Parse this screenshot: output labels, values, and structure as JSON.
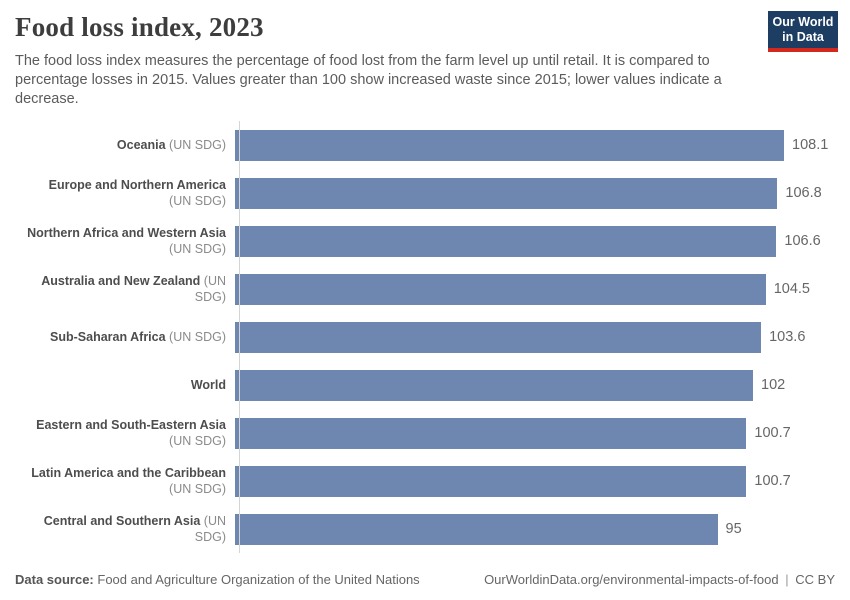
{
  "header": {
    "title": "Food loss index, 2023",
    "subtitle": "The food loss index measures the percentage of food lost from the farm level up until retail. It is compared to percentage losses in 2015. Values greater than 100 show increased waste since 2015; lower values indicate a decrease.",
    "logo": {
      "line1": "Our World",
      "line2": "in Data",
      "bg_color": "#1d3d63",
      "accent_color": "#d2281e"
    }
  },
  "chart_data": {
    "type": "bar",
    "orientation": "horizontal",
    "title": "Food loss index, 2023",
    "xlabel": "",
    "ylabel": "",
    "xlim": [
      0,
      108.1
    ],
    "grid": false,
    "legend": false,
    "bar_color": "#6d87b0",
    "axis_color": "#d5d5d5",
    "categories": [
      "Oceania (UN SDG)",
      "Europe and Northern America (UN SDG)",
      "Northern Africa and Western Asia (UN SDG)",
      "Australia and New Zealand (UN SDG)",
      "Sub-Saharan Africa (UN SDG)",
      "World",
      "Eastern and South-Eastern Asia (UN SDG)",
      "Latin America and the Caribbean (UN SDG)",
      "Central and Southern Asia (UN SDG)"
    ],
    "values": [
      108.1,
      106.8,
      106.6,
      104.5,
      103.6,
      102,
      100.7,
      100.7,
      95
    ],
    "rows": [
      {
        "name": "Oceania",
        "suffix": "(UN SDG)",
        "value": 108.1,
        "value_label": "108.1",
        "two_line": false
      },
      {
        "name": "Europe and Northern America",
        "suffix": "(UN SDG)",
        "value": 106.8,
        "value_label": "106.8",
        "two_line": true
      },
      {
        "name": "Northern Africa and Western Asia",
        "suffix": "(UN SDG)",
        "value": 106.6,
        "value_label": "106.6",
        "two_line": true
      },
      {
        "name": "Australia and New Zealand",
        "suffix": "(UN SDG)",
        "value": 104.5,
        "value_label": "104.5",
        "two_line": false
      },
      {
        "name": "Sub-Saharan Africa",
        "suffix": "(UN SDG)",
        "value": 103.6,
        "value_label": "103.6",
        "two_line": false
      },
      {
        "name": "World",
        "suffix": "",
        "value": 102,
        "value_label": "102",
        "two_line": false
      },
      {
        "name": "Eastern and South-Eastern Asia",
        "suffix": "(UN SDG)",
        "value": 100.7,
        "value_label": "100.7",
        "two_line": true
      },
      {
        "name": "Latin America and the Caribbean",
        "suffix": "(UN SDG)",
        "value": 100.7,
        "value_label": "100.7",
        "two_line": true
      },
      {
        "name": "Central and Southern Asia",
        "suffix": "(UN SDG)",
        "value": 95,
        "value_label": "95",
        "two_line": false
      }
    ]
  },
  "footer": {
    "datasource_label": "Data source:",
    "datasource_text": "Food and Agriculture Organization of the United Nations",
    "link": "OurWorldinData.org/environmental-impacts-of-food",
    "separator": "|",
    "license": "CC BY"
  }
}
